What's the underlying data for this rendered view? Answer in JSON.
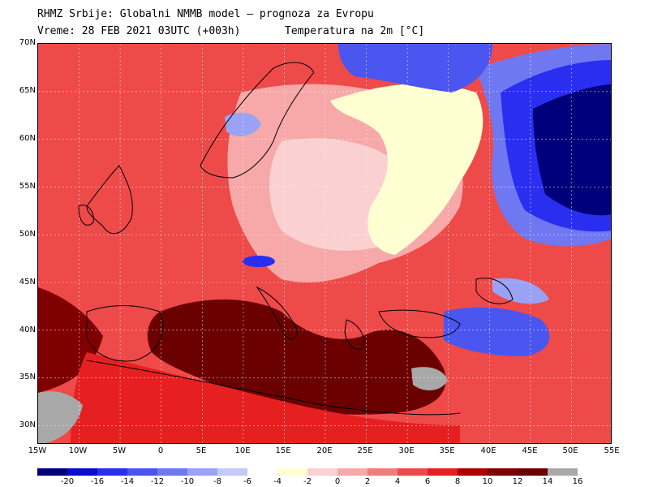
{
  "header": {
    "title_line1": "RHMZ Srbije: Globalni NMMB model — prognoza za Evropu",
    "title_line2_left": "Vreme: 28 FEB 2021 03UTC (+003h)",
    "title_line2_right": "Temperatura na 2m [°C]"
  },
  "map": {
    "lon_range": [
      -15,
      55
    ],
    "lat_range": [
      28,
      70
    ],
    "lat_ticks": [
      "70N",
      "65N",
      "60N",
      "55N",
      "50N",
      "45N",
      "40N",
      "35N",
      "30N"
    ],
    "lon_ticks": [
      "15W",
      "10W",
      "5W",
      "0",
      "5E",
      "10E",
      "15E",
      "20E",
      "25E",
      "30E",
      "35E",
      "40E",
      "45E",
      "50E",
      "55E"
    ],
    "background_color": "#ee4a4a"
  },
  "legend": {
    "colors": [
      "#00007a",
      "#0a0ad0",
      "#2a2ef0",
      "#4b55f0",
      "#6f78f0",
      "#9aa2f5",
      "#c4c8fa",
      "#ffffff",
      "#ffffd2",
      "#fbd0d0",
      "#f7a8a8",
      "#f07c7c",
      "#ee4a4a",
      "#e62020",
      "#b00000",
      "#800000",
      "#6a0000",
      "#a8a8a8"
    ],
    "labels": [
      "-20",
      "-16",
      "-14",
      "-12",
      "-10",
      "-8",
      "-6",
      "-4",
      "-2",
      "0",
      "2",
      "4",
      "6",
      "8",
      "10",
      "12",
      "14",
      "16"
    ]
  }
}
